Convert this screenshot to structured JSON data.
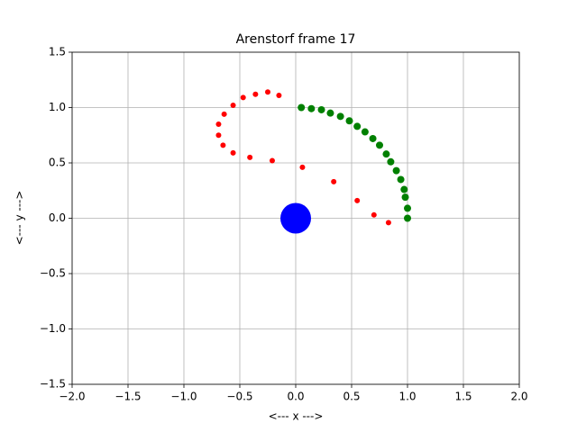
{
  "chart_data": {
    "type": "scatter",
    "title": "Arenstorf frame 17",
    "x_label": "<---  x  --->",
    "y_label": "<---  y  --->",
    "xlim": [
      -2,
      2
    ],
    "ylim": [
      -1.5,
      1.5
    ],
    "xticks": [
      {
        "value": -2,
        "label": "−2.0"
      },
      {
        "value": -1.5,
        "label": "−1.5"
      },
      {
        "value": -1,
        "label": "−1.0"
      },
      {
        "value": -0.5,
        "label": "−0.5"
      },
      {
        "value": 0,
        "label": "0.0"
      },
      {
        "value": 0.5,
        "label": "0.5"
      },
      {
        "value": 1,
        "label": "1.0"
      },
      {
        "value": 1.5,
        "label": "1.5"
      },
      {
        "value": 2,
        "label": "2.0"
      }
    ],
    "yticks": [
      {
        "value": -1.5,
        "label": "−1.5"
      },
      {
        "value": -1,
        "label": "−1.0"
      },
      {
        "value": -0.5,
        "label": "−0.5"
      },
      {
        "value": 0,
        "label": "0.0"
      },
      {
        "value": 0.5,
        "label": "0.5"
      },
      {
        "value": 1,
        "label": "1.0"
      },
      {
        "value": 1.5,
        "label": "1.5"
      }
    ],
    "grid": true,
    "series": [
      {
        "color": "#ff0000",
        "marker_size": 6,
        "x": [
          1.0,
          0.83,
          0.7,
          0.55,
          0.34,
          0.06,
          -0.21,
          -0.41,
          -0.56,
          -0.65,
          -0.69,
          -0.69,
          -0.64,
          -0.56,
          -0.47,
          -0.36,
          -0.25,
          -0.15
        ],
        "values": [
          0.0,
          -0.04,
          0.03,
          0.16,
          0.33,
          0.46,
          0.52,
          0.55,
          0.59,
          0.66,
          0.75,
          0.85,
          0.94,
          1.02,
          1.09,
          1.12,
          1.14,
          1.11
        ]
      },
      {
        "color": "#008000",
        "marker_size": 8,
        "x": [
          1.0,
          1.0,
          0.98,
          0.97,
          0.94,
          0.9,
          0.85,
          0.81,
          0.75,
          0.69,
          0.62,
          0.55,
          0.48,
          0.4,
          0.31,
          0.23,
          0.14,
          0.05
        ],
        "values": [
          0.0,
          0.09,
          0.19,
          0.26,
          0.35,
          0.43,
          0.51,
          0.58,
          0.66,
          0.72,
          0.78,
          0.83,
          0.88,
          0.92,
          0.95,
          0.98,
          0.99,
          1.0
        ]
      },
      {
        "color": "#0000ff",
        "marker_size": 34,
        "x": [
          0
        ],
        "values": [
          0
        ]
      }
    ]
  }
}
